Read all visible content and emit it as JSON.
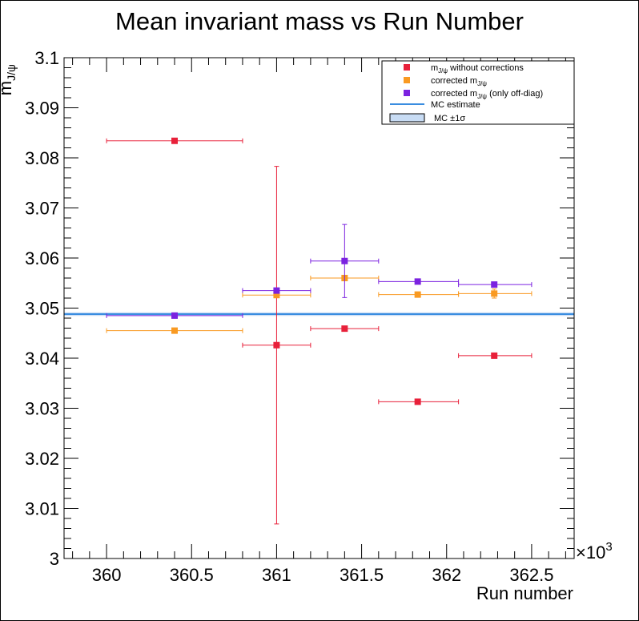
{
  "chart_data": {
    "type": "scatter",
    "title": "Mean invariant mass vs Run Number",
    "xlabel": "Run number",
    "x_multiplier_label": "×10",
    "x_multiplier_exp": "3",
    "ylabel_main": "m",
    "ylabel_sub": "J/ψ",
    "xlim": [
      359.75,
      362.75
    ],
    "ylim": [
      3.0,
      3.1
    ],
    "x_ticks": [
      360,
      360.5,
      361,
      361.5,
      362,
      362.5
    ],
    "x_tick_labels": [
      "360",
      "360.5",
      "361",
      "361.5",
      "362",
      "362.5"
    ],
    "y_ticks": [
      3.0,
      3.01,
      3.02,
      3.03,
      3.04,
      3.05,
      3.06,
      3.07,
      3.08,
      3.09,
      3.1
    ],
    "y_tick_labels": [
      "3",
      "3.01",
      "3.02",
      "3.03",
      "3.04",
      "3.05",
      "3.06",
      "3.07",
      "3.08",
      "3.09",
      "3.1"
    ],
    "grid": false,
    "legend_position": "top-right",
    "series": [
      {
        "name": "without corrections",
        "legend_main": "m",
        "legend_sub": "J/ψ",
        "legend_rest": " without corrections",
        "color": "#e8203a",
        "points": [
          {
            "x": 360.4,
            "y": 3.0834,
            "xlo": 360.0,
            "xhi": 360.8,
            "yerr": 0.0002
          },
          {
            "x": 361.0,
            "y": 3.0426,
            "xlo": 360.8,
            "xhi": 361.2,
            "yerr": 0.0357
          },
          {
            "x": 361.4,
            "y": 3.0459,
            "xlo": 361.2,
            "xhi": 361.6,
            "yerr": 0.0003
          },
          {
            "x": 361.83,
            "y": 3.0313,
            "xlo": 361.6,
            "xhi": 362.07,
            "yerr": 0.0002
          },
          {
            "x": 362.28,
            "y": 3.0405,
            "xlo": 362.07,
            "xhi": 362.5,
            "yerr": 0.0005
          }
        ]
      },
      {
        "name": "corrected",
        "legend_main": "corrected m",
        "legend_sub": "J/ψ",
        "legend_rest": "",
        "color": "#f99a22",
        "points": [
          {
            "x": 360.4,
            "y": 3.0455,
            "xlo": 360.0,
            "xhi": 360.8,
            "yerr": 0.0002
          },
          {
            "x": 361.0,
            "y": 3.0526,
            "xlo": 360.8,
            "xhi": 361.2,
            "yerr": 0.0004
          },
          {
            "x": 361.4,
            "y": 3.056,
            "xlo": 361.2,
            "xhi": 361.6,
            "yerr": 0.0003
          },
          {
            "x": 361.83,
            "y": 3.0527,
            "xlo": 361.6,
            "xhi": 362.07,
            "yerr": 0.0002
          },
          {
            "x": 362.28,
            "y": 3.0529,
            "xlo": 362.07,
            "xhi": 362.5,
            "yerr": 0.0009
          }
        ]
      },
      {
        "name": "corrected (only off-diag)",
        "legend_main": "corrected m",
        "legend_sub": "J/ψ",
        "legend_rest": " (only off-diag)",
        "color": "#7b22e0",
        "points": [
          {
            "x": 360.4,
            "y": 3.0485,
            "xlo": 360.0,
            "xhi": 360.8,
            "yerr": 0.0002
          },
          {
            "x": 361.0,
            "y": 3.0535,
            "xlo": 360.8,
            "xhi": 361.2,
            "yerr": 0.0004
          },
          {
            "x": 361.4,
            "y": 3.0594,
            "xlo": 361.2,
            "xhi": 361.6,
            "yerr": 0.0073
          },
          {
            "x": 361.83,
            "y": 3.0553,
            "xlo": 361.6,
            "xhi": 362.07,
            "yerr": 0.0002
          },
          {
            "x": 362.28,
            "y": 3.0547,
            "xlo": 362.07,
            "xhi": 362.5,
            "yerr": 0.0003
          }
        ]
      }
    ],
    "mc_estimate": {
      "name": "MC estimate",
      "value": 3.0488,
      "sigma": 0.0002,
      "color": "#3a8de0",
      "band_color": "#c8dcf4",
      "band_label_prefix": "MC ±1",
      "band_label_sigma": "σ"
    }
  }
}
